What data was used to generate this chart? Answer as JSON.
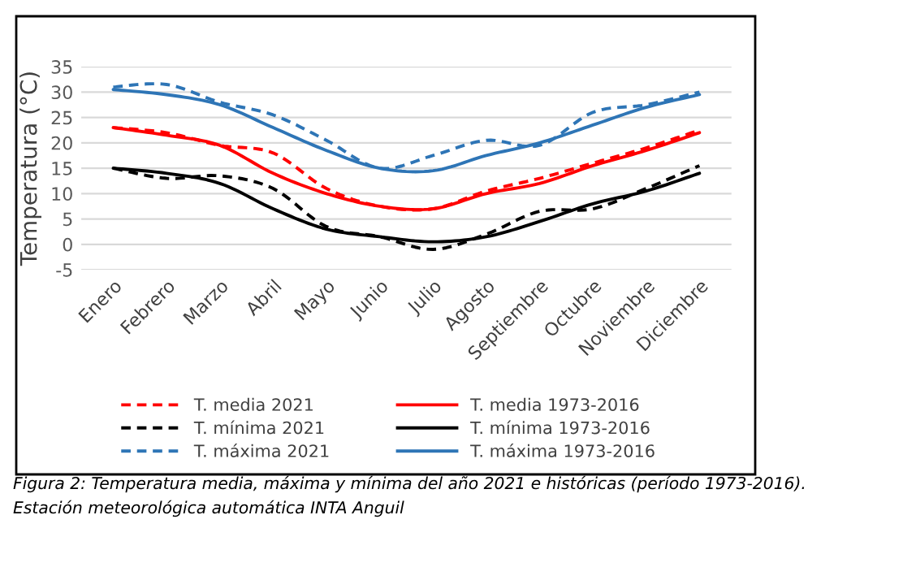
{
  "chart_data": {
    "type": "line",
    "ylabel": "Temperatura (°C)",
    "categories": [
      "Enero",
      "Febrero",
      "Marzo",
      "Abril",
      "Mayo",
      "Junio",
      "Julio",
      "Agosto",
      "Septiembre",
      "Octubre",
      "Noviembre",
      "Diciembre"
    ],
    "ylim": [
      -5,
      35
    ],
    "yticks": [
      -5,
      0,
      5,
      10,
      15,
      20,
      25,
      30,
      35
    ],
    "grid": "y",
    "legend": "bottom",
    "marker": "none",
    "series": [
      {
        "name": "T. media 2021",
        "color": "#ff0000",
        "line_style": "dashed",
        "values": [
          23,
          22,
          19.5,
          18,
          11,
          7.5,
          7,
          10.5,
          13,
          16,
          19,
          22.5
        ]
      },
      {
        "name": "T. media 1973-2016",
        "color": "#ff0000",
        "line_style": "solid",
        "values": [
          23,
          21.5,
          19.5,
          14,
          10,
          7.5,
          7,
          10,
          12,
          15.5,
          18.5,
          22
        ]
      },
      {
        "name": "T. mínima 2021",
        "color": "#000000",
        "line_style": "dashed",
        "values": [
          15,
          13,
          13.5,
          11,
          3.5,
          1.5,
          -1,
          2,
          6.5,
          7,
          11,
          15.5
        ]
      },
      {
        "name": "T. mínima 1973-2016",
        "color": "#000000",
        "line_style": "solid",
        "values": [
          15,
          14,
          12,
          7,
          3,
          1.5,
          0.5,
          1.5,
          4.5,
          8,
          10.5,
          14
        ]
      },
      {
        "name": "T. máxima 2021",
        "color": "#2e75b6",
        "line_style": "dashed",
        "values": [
          31,
          31.5,
          28,
          25.5,
          20.5,
          15,
          17.5,
          20.5,
          19.5,
          26,
          27.5,
          30
        ]
      },
      {
        "name": "T. máxima 1973-2016",
        "color": "#2e75b6",
        "line_style": "solid",
        "values": [
          30.5,
          29.5,
          27.5,
          23,
          18.5,
          15,
          14.5,
          17.5,
          20,
          23.5,
          27,
          29.5
        ]
      }
    ],
    "annotations": [
      "Figura 2: Temperatura media, máxima y mínima del año 2021 e históricas (período 1973-2016).",
      "Estación meteorológica automática INTA Anguil"
    ]
  }
}
